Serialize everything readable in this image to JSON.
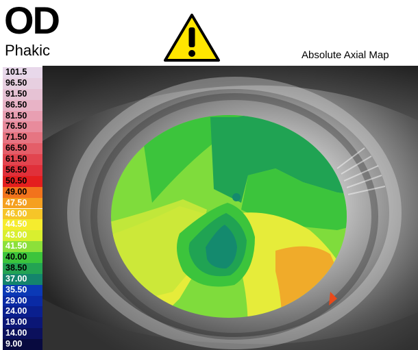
{
  "header": {
    "eye": "OD",
    "lens_status": "Phakic",
    "map_type": "Absolute Axial Map"
  },
  "warning_icon": "warning-triangle-icon",
  "scale": {
    "items": [
      {
        "label": "101.5",
        "color": "#e8d8ea",
        "text": "#000000"
      },
      {
        "label": "96.50",
        "color": "#e7cfe0",
        "text": "#000000"
      },
      {
        "label": "91.50",
        "color": "#e6c2d4",
        "text": "#000000"
      },
      {
        "label": "86.50",
        "color": "#e8b3c6",
        "text": "#000000"
      },
      {
        "label": "81.50",
        "color": "#e89fb2",
        "text": "#000000"
      },
      {
        "label": "76.50",
        "color": "#e88b9c",
        "text": "#000000"
      },
      {
        "label": "71.50",
        "color": "#e67582",
        "text": "#000000"
      },
      {
        "label": "66.50",
        "color": "#e45e69",
        "text": "#000000"
      },
      {
        "label": "61.50",
        "color": "#e2454f",
        "text": "#000000"
      },
      {
        "label": "56.50",
        "color": "#e0303a",
        "text": "#000000"
      },
      {
        "label": "50.50",
        "color": "#e41e1e",
        "text": "#000000"
      },
      {
        "label": "49.00",
        "color": "#f2731c",
        "text": "#000000"
      },
      {
        "label": "47.50",
        "color": "#f5a020",
        "text": "#ffffff"
      },
      {
        "label": "46.00",
        "color": "#f6c528",
        "text": "#ffffff"
      },
      {
        "label": "44.50",
        "color": "#f6ec2e",
        "text": "#ffffff"
      },
      {
        "label": "43.00",
        "color": "#d9ef2f",
        "text": "#ffffff"
      },
      {
        "label": "41.50",
        "color": "#8ce03a",
        "text": "#ffffff"
      },
      {
        "label": "40.00",
        "color": "#3cc43c",
        "text": "#000000"
      },
      {
        "label": "38.50",
        "color": "#23a353",
        "text": "#000000"
      },
      {
        "label": "37.00",
        "color": "#14846c",
        "text": "#ffffff"
      },
      {
        "label": "35.50",
        "color": "#0b39b6",
        "text": "#ffffff"
      },
      {
        "label": "29.00",
        "color": "#0a2aa5",
        "text": "#ffffff"
      },
      {
        "label": "24.00",
        "color": "#0a1f8e",
        "text": "#ffffff"
      },
      {
        "label": "19.00",
        "color": "#0b1676",
        "text": "#ffffff"
      },
      {
        "label": "14.00",
        "color": "#0b105c",
        "text": "#ffffff"
      },
      {
        "label": "9.00",
        "color": "#080a3f",
        "text": "#ffffff"
      }
    ]
  },
  "colors": {
    "warning_fill": "#ffe600",
    "map_green_light": "#7fdc3c",
    "map_green_mid": "#3cc43c",
    "map_green_dark": "#20a353",
    "map_teal": "#148a6e",
    "map_yellow": "#e6ec3a",
    "map_orange": "#f0ab2a"
  }
}
